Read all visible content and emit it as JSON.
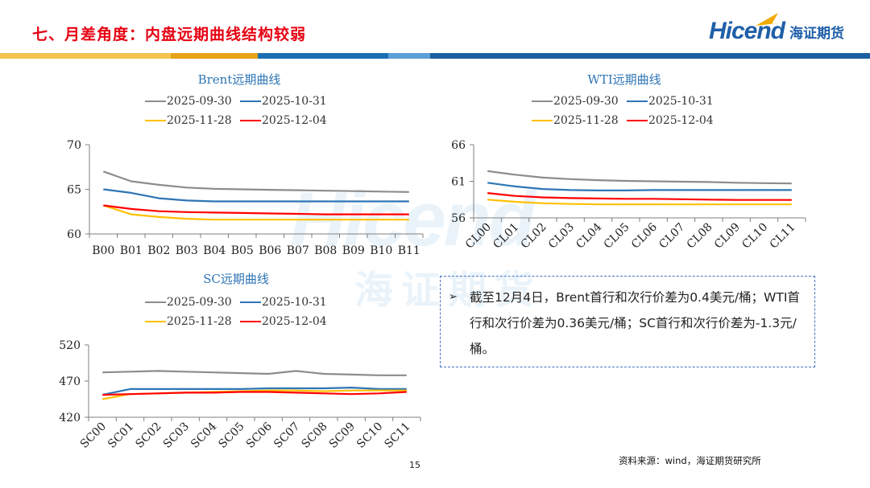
{
  "page": {
    "title": "七、月差角度：内盘远期曲线结构较弱",
    "logo_text": "Hicend",
    "logo_cn": "海证期货",
    "watermark_en": "Hicend",
    "watermark_cn": "海证期货",
    "source": "资料来源：wind，海证期货研究所",
    "page_number": "15",
    "band_colors": [
      "#f2c44e",
      "#e8a317",
      "#1b6fb3",
      "#5a9fd6",
      "#1b5fa0"
    ]
  },
  "note": {
    "bullet": "➢",
    "text": "截至12月4日，Brent首行和次行价差为0.4美元/桶；WTI首行和次行价差为0.36美元/桶；SC首行和次行价差为-1.3元/桶。"
  },
  "legend_colors": [
    "#8c8c8c",
    "#2e75b6",
    "#ffc000",
    "#ff0000"
  ],
  "chart_data": [
    {
      "type": "line",
      "title": "Brent远期曲线",
      "categories": [
        "B00",
        "B01",
        "B02",
        "B03",
        "B04",
        "B05",
        "B06",
        "B07",
        "B08",
        "B09",
        "B10",
        "B11"
      ],
      "ylim": [
        60,
        70
      ],
      "yticks": [
        60,
        65,
        70
      ],
      "rotate_x_labels": false,
      "legend": "top",
      "series": [
        {
          "name": "2025-09-30",
          "values": [
            67.0,
            65.9,
            65.5,
            65.2,
            65.05,
            65.0,
            64.95,
            64.9,
            64.85,
            64.8,
            64.75,
            64.7
          ]
        },
        {
          "name": "2025-10-31",
          "values": [
            65.0,
            64.6,
            64.0,
            63.75,
            63.65,
            63.65,
            63.65,
            63.65,
            63.65,
            63.65,
            63.65,
            63.65
          ]
        },
        {
          "name": "2025-11-28",
          "values": [
            63.2,
            62.2,
            61.9,
            61.7,
            61.6,
            61.6,
            61.6,
            61.6,
            61.6,
            61.6,
            61.6,
            61.6
          ]
        },
        {
          "name": "2025-12-04",
          "values": [
            63.2,
            62.8,
            62.55,
            62.45,
            62.4,
            62.35,
            62.3,
            62.25,
            62.2,
            62.2,
            62.2,
            62.2
          ]
        }
      ]
    },
    {
      "type": "line",
      "title": "WTI远期曲线",
      "categories": [
        "CL00",
        "CL01",
        "CL02",
        "CL03",
        "CL04",
        "CL05",
        "CL06",
        "CL07",
        "CL08",
        "CL09",
        "CL10",
        "CL11"
      ],
      "ylim": [
        56,
        66
      ],
      "yticks": [
        56,
        61,
        66
      ],
      "rotate_x_labels": true,
      "legend": "top",
      "series": [
        {
          "name": "2025-09-30",
          "values": [
            62.4,
            61.9,
            61.5,
            61.3,
            61.15,
            61.05,
            61.0,
            60.95,
            60.9,
            60.8,
            60.75,
            60.7
          ]
        },
        {
          "name": "2025-10-31",
          "values": [
            60.8,
            60.3,
            59.95,
            59.8,
            59.75,
            59.75,
            59.8,
            59.8,
            59.8,
            59.8,
            59.8,
            59.8
          ]
        },
        {
          "name": "2025-11-28",
          "values": [
            58.5,
            58.2,
            58.0,
            57.9,
            57.85,
            57.85,
            57.85,
            57.85,
            57.85,
            57.85,
            57.85,
            57.85
          ]
        },
        {
          "name": "2025-12-04",
          "values": [
            59.4,
            59.0,
            58.8,
            58.7,
            58.65,
            58.6,
            58.6,
            58.55,
            58.5,
            58.45,
            58.45,
            58.45
          ]
        }
      ]
    },
    {
      "type": "line",
      "title": "SC远期曲线",
      "categories": [
        "SC00",
        "SC01",
        "SC02",
        "SC03",
        "SC04",
        "SC05",
        "SC06",
        "SC07",
        "SC08",
        "SC09",
        "SC10",
        "SC11"
      ],
      "ylim": [
        420,
        520
      ],
      "yticks": [
        420,
        470,
        520
      ],
      "rotate_x_labels": true,
      "legend": "top",
      "series": [
        {
          "name": "2025-09-30",
          "values": [
            482,
            483,
            484,
            483,
            482,
            481,
            480,
            484,
            480,
            479,
            478,
            478
          ]
        },
        {
          "name": "2025-10-31",
          "values": [
            451,
            459,
            459,
            459,
            459,
            459,
            460,
            460,
            460,
            461,
            459,
            459
          ]
        },
        {
          "name": "2025-11-28",
          "values": [
            445,
            452,
            453,
            454,
            455,
            456,
            457,
            457,
            456,
            457,
            457,
            457
          ]
        },
        {
          "name": "2025-12-04",
          "values": [
            451,
            452,
            453,
            454,
            454,
            455,
            455,
            454,
            453,
            452,
            453,
            455
          ]
        }
      ]
    }
  ]
}
